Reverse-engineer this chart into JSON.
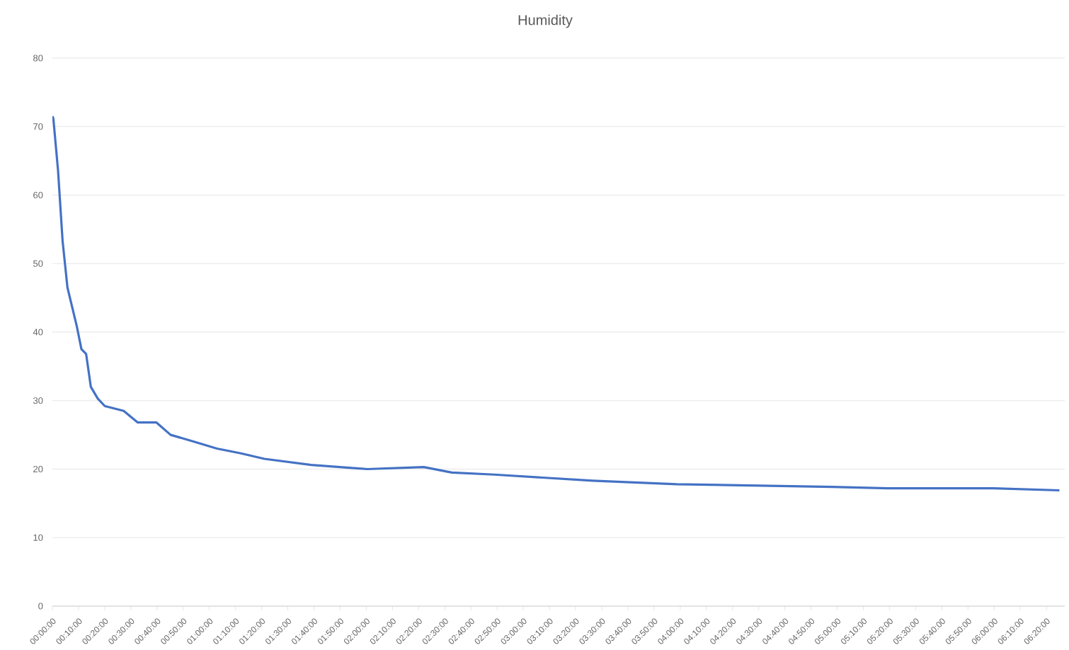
{
  "chart_data": {
    "type": "line",
    "title": "Humidity",
    "color": "#4472c4",
    "x": [
      0,
      0.006,
      0.036,
      0.065,
      0.096,
      0.155,
      0.185,
      0.215,
      0.245,
      0.289,
      0.334,
      0.454,
      0.544,
      0.663,
      0.753,
      0.902,
      1.048,
      1.201,
      1.35,
      1.649,
      2.007,
      2.366,
      2.545,
      2.814,
      3.441,
      3.978,
      4.964,
      5.323,
      5.995,
      6.416
    ],
    "values": [
      71.5,
      71.2,
      63.6,
      53.3,
      46.5,
      40.9,
      37.5,
      36.8,
      32.0,
      30.3,
      29.2,
      28.5,
      26.8,
      26.8,
      25.0,
      24.0,
      23.0,
      22.3,
      21.5,
      20.6,
      20.0,
      20.3,
      19.5,
      19.2,
      18.3,
      17.8,
      17.4,
      17.2,
      17.2,
      16.9
    ],
    "xlim": [
      0,
      6.45
    ],
    "ylim": [
      0,
      80
    ],
    "yticks": [
      0,
      10,
      20,
      30,
      40,
      50,
      60,
      70,
      80
    ],
    "xticks": [
      {
        "value": 0,
        "label": "00:00:00"
      },
      {
        "value": 0.1667,
        "label": "00:10:00"
      },
      {
        "value": 0.3333,
        "label": "00:20:00"
      },
      {
        "value": 0.5,
        "label": "00:30:00"
      },
      {
        "value": 0.6667,
        "label": "00:40:00"
      },
      {
        "value": 0.8333,
        "label": "00:50:00"
      },
      {
        "value": 1,
        "label": "01:00:00"
      },
      {
        "value": 1.1667,
        "label": "01:10:00"
      },
      {
        "value": 1.3333,
        "label": "01:20:00"
      },
      {
        "value": 1.5,
        "label": "01:30:00"
      },
      {
        "value": 1.6667,
        "label": "01:40:00"
      },
      {
        "value": 1.8333,
        "label": "01:50:00"
      },
      {
        "value": 2,
        "label": "02:00:00"
      },
      {
        "value": 2.1667,
        "label": "02:10:00"
      },
      {
        "value": 2.3333,
        "label": "02:20:00"
      },
      {
        "value": 2.5,
        "label": "02:30:00"
      },
      {
        "value": 2.6667,
        "label": "02:40:00"
      },
      {
        "value": 2.8333,
        "label": "02:50:00"
      },
      {
        "value": 3,
        "label": "03:00:00"
      },
      {
        "value": 3.1667,
        "label": "03:10:00"
      },
      {
        "value": 3.3333,
        "label": "03:20:00"
      },
      {
        "value": 3.5,
        "label": "03:30:00"
      },
      {
        "value": 3.6667,
        "label": "03:40:00"
      },
      {
        "value": 3.8333,
        "label": "03:50:00"
      },
      {
        "value": 4,
        "label": "04:00:00"
      },
      {
        "value": 4.1667,
        "label": "04:10:00"
      },
      {
        "value": 4.3333,
        "label": "04:20:00"
      },
      {
        "value": 4.5,
        "label": "04:30:00"
      },
      {
        "value": 4.6667,
        "label": "04:40:00"
      },
      {
        "value": 4.8333,
        "label": "04:50:00"
      },
      {
        "value": 5,
        "label": "05:00:00"
      },
      {
        "value": 5.1667,
        "label": "05:10:00"
      },
      {
        "value": 5.3333,
        "label": "05:20:00"
      },
      {
        "value": 5.5,
        "label": "05:30:00"
      },
      {
        "value": 5.6667,
        "label": "05:40:00"
      },
      {
        "value": 5.8333,
        "label": "05:50:00"
      },
      {
        "value": 6,
        "label": "06:00:00"
      },
      {
        "value": 6.1667,
        "label": "06:10:00"
      },
      {
        "value": 6.3333,
        "label": "06:20:00"
      }
    ],
    "grid": "y",
    "marker": "none",
    "line_style": "solid"
  }
}
